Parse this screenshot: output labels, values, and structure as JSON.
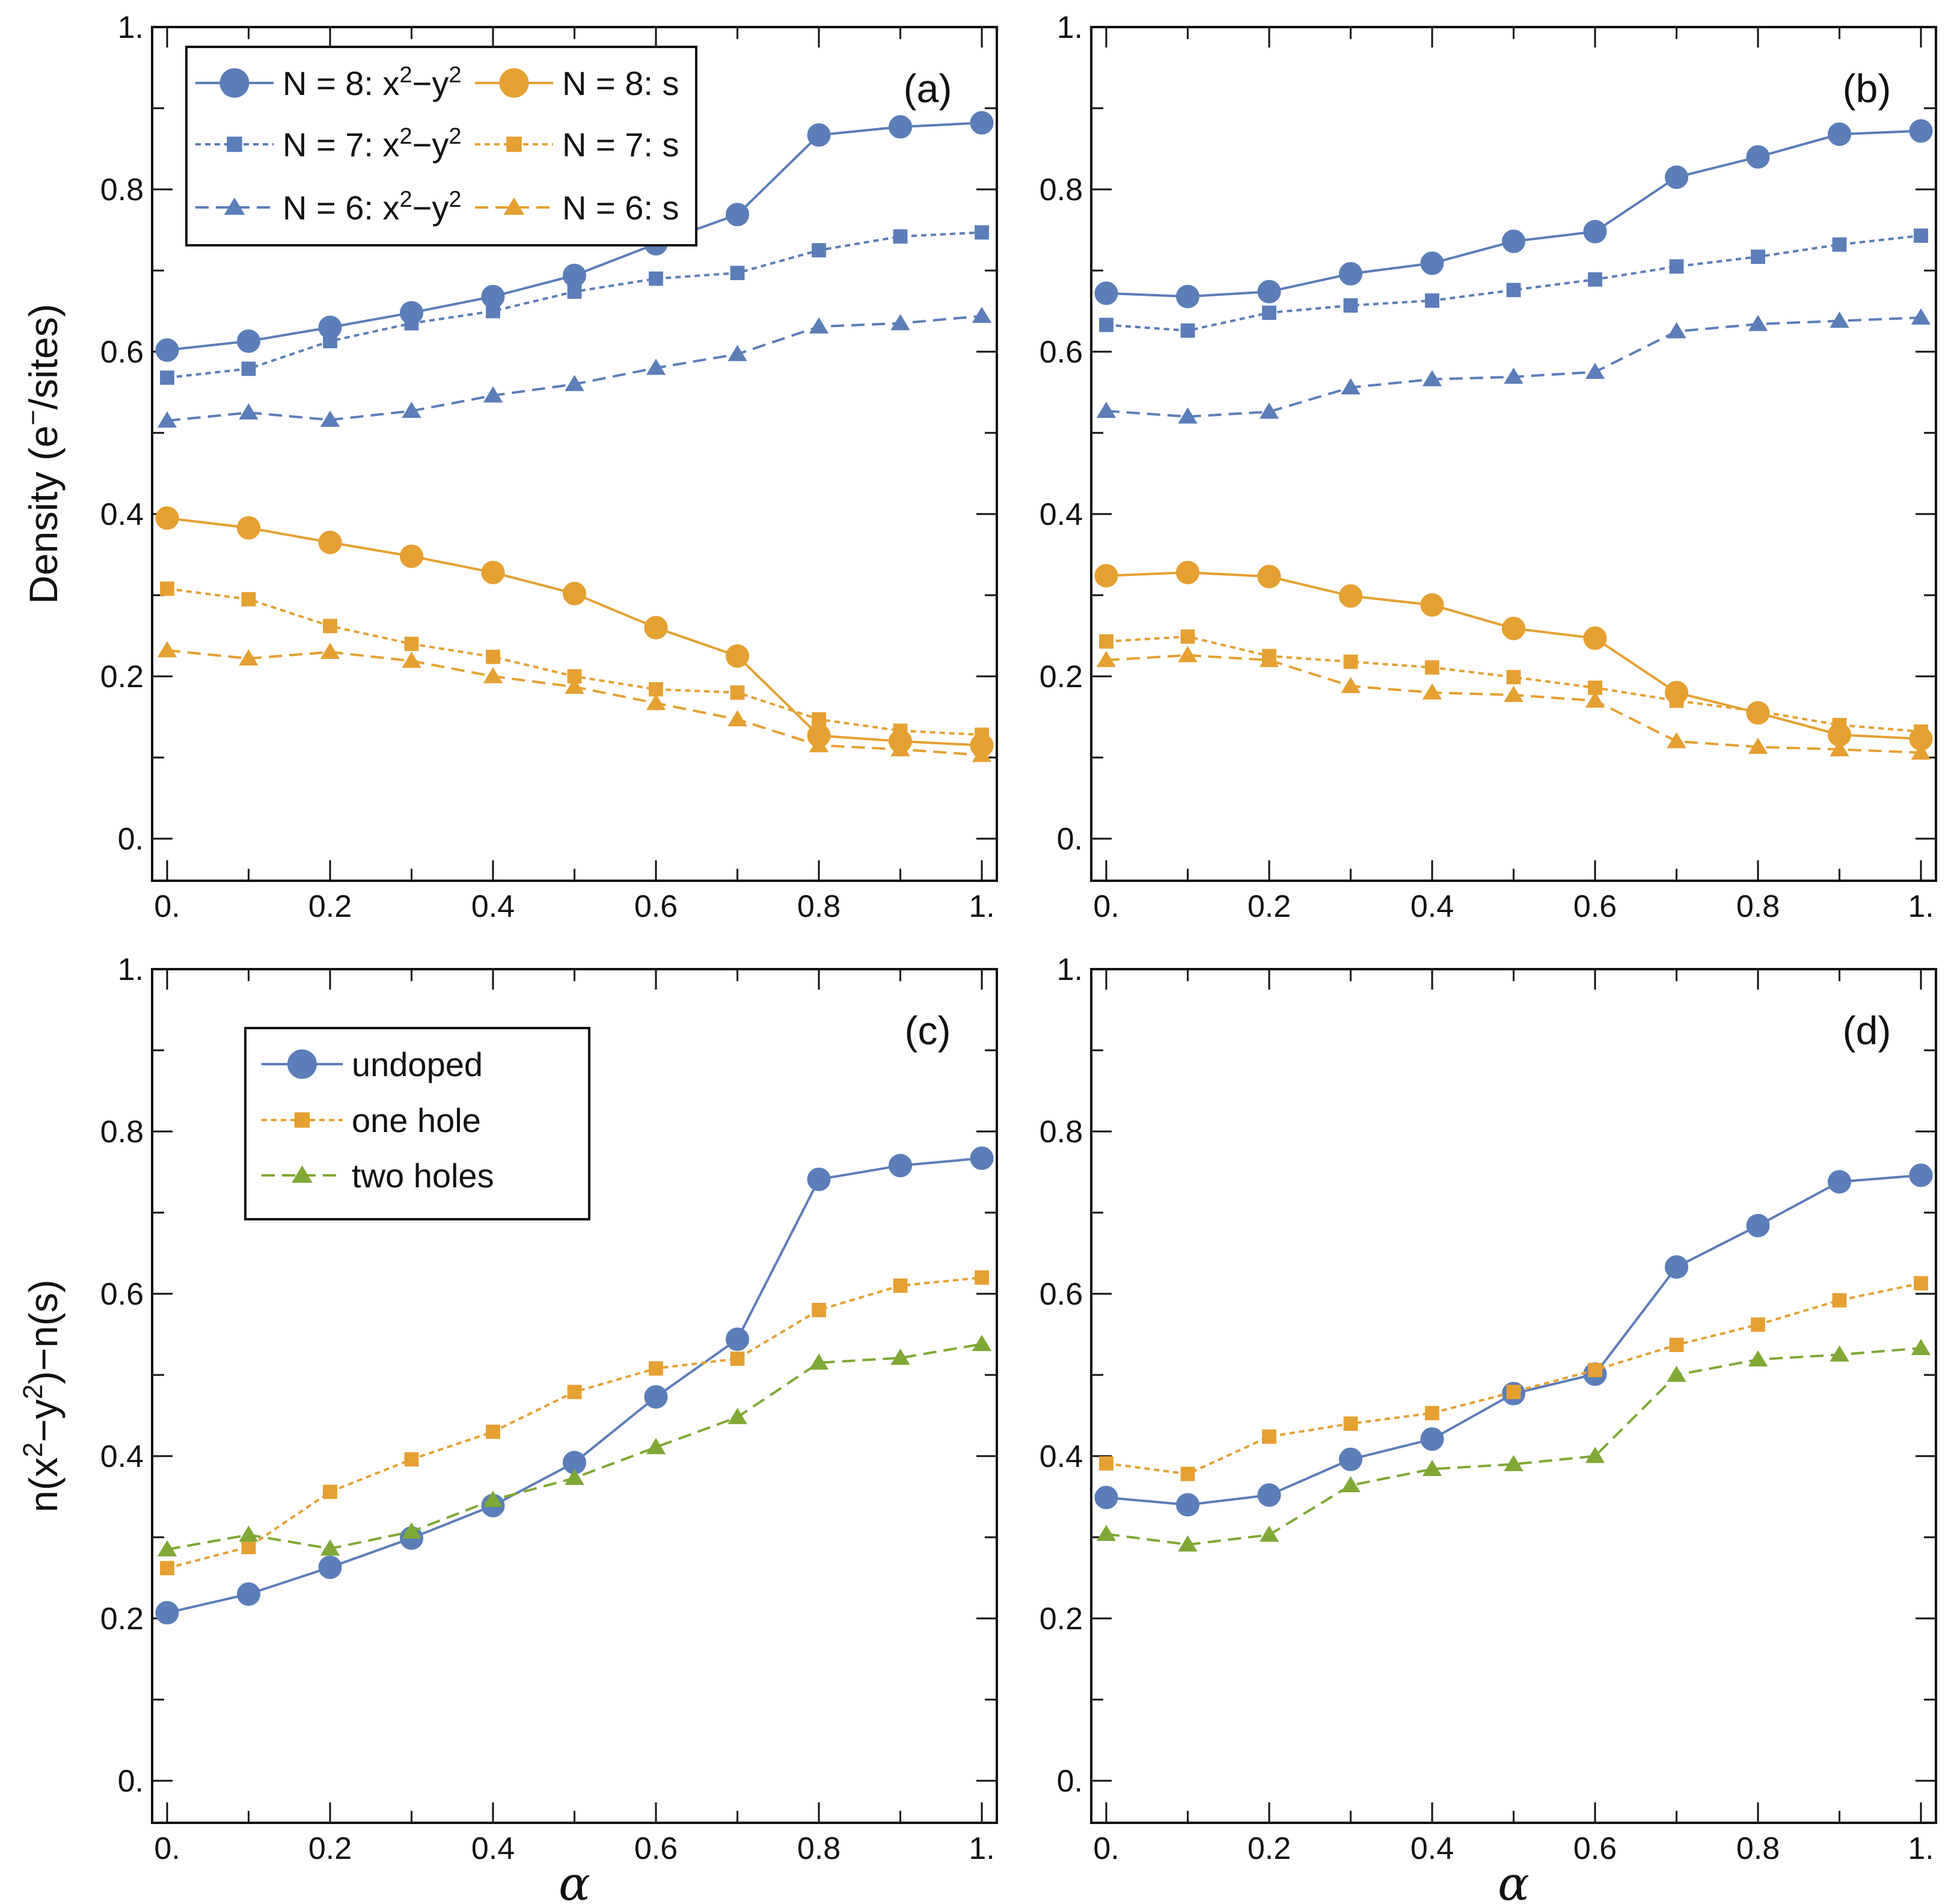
{
  "colors": {
    "blue": "#5B7DB8",
    "orange": "#E5A032",
    "green": "#7FA835",
    "axis": "#111111"
  },
  "chart_data": [
    {
      "panel": "(a)",
      "type": "line",
      "title": "",
      "xlabel": "",
      "ylabel": "Density (e⁻/sites)",
      "xlim": [
        0,
        1
      ],
      "ylim": [
        0,
        1
      ],
      "xticks": [
        "0.",
        "0.2",
        "0.4",
        "0.6",
        "0.8",
        "1."
      ],
      "yticks": [
        "0.",
        "0.2",
        "0.4",
        "0.6",
        "0.8",
        "1."
      ],
      "x": [
        0,
        0.1,
        0.2,
        0.3,
        0.4,
        0.5,
        0.6,
        0.7,
        0.8,
        0.9,
        1.0
      ],
      "legend_position": "top-left",
      "series": [
        {
          "name": "N = 8: x²−y²",
          "color": "blue",
          "marker": "circle",
          "dash": "solid",
          "values": [
            0.602,
            0.613,
            0.63,
            0.648,
            0.668,
            0.694,
            0.733,
            0.769,
            0.867,
            0.877,
            0.882
          ]
        },
        {
          "name": "N = 7: x²−y²",
          "color": "blue",
          "marker": "square",
          "dash": "dotted",
          "values": [
            0.568,
            0.579,
            0.613,
            0.635,
            0.65,
            0.674,
            0.69,
            0.697,
            0.725,
            0.742,
            0.747
          ]
        },
        {
          "name": "N = 6: x²−y²",
          "color": "blue",
          "marker": "triangle",
          "dash": "dashed",
          "values": [
            0.515,
            0.525,
            0.516,
            0.527,
            0.546,
            0.56,
            0.58,
            0.597,
            0.631,
            0.635,
            0.644
          ]
        },
        {
          "name": "N = 8: s",
          "color": "orange",
          "marker": "circle",
          "dash": "solid",
          "values": [
            0.395,
            0.383,
            0.365,
            0.348,
            0.328,
            0.302,
            0.26,
            0.225,
            0.127,
            0.12,
            0.115
          ]
        },
        {
          "name": "N = 7: s",
          "color": "orange",
          "marker": "square",
          "dash": "dotted",
          "values": [
            0.308,
            0.295,
            0.262,
            0.24,
            0.224,
            0.2,
            0.184,
            0.18,
            0.147,
            0.133,
            0.128
          ]
        },
        {
          "name": "N = 6: s",
          "color": "orange",
          "marker": "triangle",
          "dash": "dashed",
          "values": [
            0.232,
            0.222,
            0.23,
            0.219,
            0.2,
            0.187,
            0.167,
            0.147,
            0.115,
            0.11,
            0.103
          ]
        }
      ]
    },
    {
      "panel": "(b)",
      "type": "line",
      "title": "",
      "xlabel": "",
      "ylabel": "",
      "xlim": [
        0,
        1
      ],
      "ylim": [
        0,
        1
      ],
      "xticks": [
        "0.",
        "0.2",
        "0.4",
        "0.6",
        "0.8",
        "1."
      ],
      "yticks": [
        "0.",
        "0.2",
        "0.4",
        "0.6",
        "0.8",
        "1."
      ],
      "x": [
        0,
        0.1,
        0.2,
        0.3,
        0.4,
        0.5,
        0.6,
        0.7,
        0.8,
        0.9,
        1.0
      ],
      "series": [
        {
          "name": "N = 8: x²−y²",
          "color": "blue",
          "marker": "circle",
          "dash": "solid",
          "values": [
            0.672,
            0.668,
            0.674,
            0.696,
            0.709,
            0.736,
            0.748,
            0.815,
            0.84,
            0.868,
            0.872
          ]
        },
        {
          "name": "N = 7: x²−y²",
          "color": "blue",
          "marker": "square",
          "dash": "dotted",
          "values": [
            0.633,
            0.626,
            0.648,
            0.657,
            0.663,
            0.676,
            0.689,
            0.705,
            0.717,
            0.732,
            0.743
          ]
        },
        {
          "name": "N = 6: x²−y²",
          "color": "blue",
          "marker": "triangle",
          "dash": "dashed",
          "values": [
            0.527,
            0.52,
            0.526,
            0.556,
            0.566,
            0.569,
            0.575,
            0.625,
            0.634,
            0.638,
            0.642
          ]
        },
        {
          "name": "N = 8: s",
          "color": "orange",
          "marker": "circle",
          "dash": "solid",
          "values": [
            0.324,
            0.328,
            0.323,
            0.299,
            0.288,
            0.259,
            0.247,
            0.18,
            0.155,
            0.128,
            0.123
          ]
        },
        {
          "name": "N = 7: s",
          "color": "orange",
          "marker": "square",
          "dash": "dotted",
          "values": [
            0.243,
            0.249,
            0.225,
            0.218,
            0.211,
            0.199,
            0.186,
            0.17,
            0.157,
            0.14,
            0.132
          ]
        },
        {
          "name": "N = 6: s",
          "color": "orange",
          "marker": "triangle",
          "dash": "dashed",
          "values": [
            0.22,
            0.226,
            0.22,
            0.188,
            0.18,
            0.177,
            0.17,
            0.12,
            0.113,
            0.11,
            0.106
          ]
        }
      ]
    },
    {
      "panel": "(c)",
      "type": "line",
      "title": "",
      "xlabel": "α",
      "ylabel": "n(x²−y²)−n(s)",
      "xlim": [
        0,
        1
      ],
      "ylim": [
        0,
        1
      ],
      "xticks": [
        "0.",
        "0.2",
        "0.4",
        "0.6",
        "0.8",
        "1."
      ],
      "yticks": [
        "0.",
        "0.2",
        "0.4",
        "0.6",
        "0.8",
        "1."
      ],
      "x": [
        0,
        0.1,
        0.2,
        0.3,
        0.4,
        0.5,
        0.6,
        0.7,
        0.8,
        0.9,
        1.0
      ],
      "legend_position": "top-left",
      "series": [
        {
          "name": "undoped",
          "color": "blue",
          "marker": "circle",
          "dash": "solid",
          "values": [
            0.207,
            0.23,
            0.263,
            0.299,
            0.339,
            0.392,
            0.473,
            0.544,
            0.741,
            0.758,
            0.767
          ]
        },
        {
          "name": "one hole",
          "color": "orange",
          "marker": "square",
          "dash": "dotted",
          "values": [
            0.262,
            0.288,
            0.356,
            0.396,
            0.43,
            0.479,
            0.508,
            0.52,
            0.58,
            0.61,
            0.62
          ]
        },
        {
          "name": "two holes",
          "color": "green",
          "marker": "triangle",
          "dash": "dashed",
          "values": [
            0.285,
            0.303,
            0.286,
            0.307,
            0.346,
            0.373,
            0.411,
            0.448,
            0.515,
            0.521,
            0.538
          ]
        }
      ]
    },
    {
      "panel": "(d)",
      "type": "line",
      "title": "",
      "xlabel": "α",
      "ylabel": "",
      "xlim": [
        0,
        1
      ],
      "ylim": [
        0,
        1
      ],
      "xticks": [
        "0.",
        "0.2",
        "0.4",
        "0.6",
        "0.8",
        "1."
      ],
      "yticks": [
        "0.",
        "0.2",
        "0.4",
        "0.6",
        "0.8",
        "1."
      ],
      "x": [
        0,
        0.1,
        0.2,
        0.3,
        0.4,
        0.5,
        0.6,
        0.7,
        0.8,
        0.9,
        1.0
      ],
      "series": [
        {
          "name": "undoped",
          "color": "blue",
          "marker": "circle",
          "dash": "solid",
          "values": [
            0.349,
            0.34,
            0.352,
            0.396,
            0.421,
            0.477,
            0.501,
            0.633,
            0.684,
            0.738,
            0.746
          ]
        },
        {
          "name": "one hole",
          "color": "orange",
          "marker": "square",
          "dash": "dotted",
          "values": [
            0.391,
            0.378,
            0.424,
            0.44,
            0.453,
            0.479,
            0.506,
            0.537,
            0.562,
            0.592,
            0.613
          ]
        },
        {
          "name": "two holes",
          "color": "green",
          "marker": "triangle",
          "dash": "dashed",
          "values": [
            0.304,
            0.291,
            0.303,
            0.364,
            0.384,
            0.39,
            0.4,
            0.5,
            0.519,
            0.525,
            0.533
          ]
        }
      ]
    }
  ]
}
